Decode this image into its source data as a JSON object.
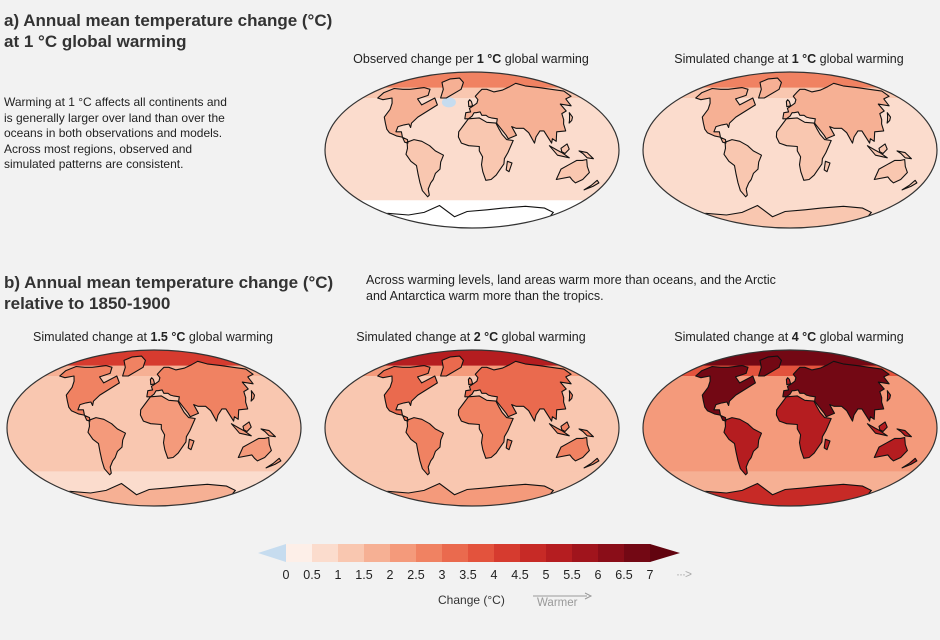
{
  "section_a": {
    "title_line1": "a) Annual mean temperature change (°C)",
    "title_line2": "at 1 °C global warming",
    "description_lines": [
      "Warming at 1 °C affects all continents and",
      "is generally larger over land than over the",
      "oceans in both observations and models.",
      "Across most regions, observed and",
      "simulated patterns are consistent."
    ],
    "maps": [
      {
        "title_pre": "Observed change per ",
        "title_bold": "1 °C",
        "title_post": " global warming",
        "intensity": "1-observed"
      },
      {
        "title_pre": "Simulated change at ",
        "title_bold": "1 °C",
        "title_post": " global warming",
        "intensity": "1"
      }
    ]
  },
  "section_b": {
    "title_line1": "b) Annual mean temperature change (°C)",
    "title_line2": "relative to 1850-1900",
    "note_line1": "Across warming levels, land areas warm more than oceans, and the Arctic",
    "note_line2": "and Antarctica warm more than the tropics.",
    "maps": [
      {
        "title_pre": "Simulated change at ",
        "title_bold": "1.5 °C",
        "title_post": " global warming",
        "intensity": "1.5"
      },
      {
        "title_pre": "Simulated change at ",
        "title_bold": "2 °C",
        "title_post": " global warming",
        "intensity": "2"
      },
      {
        "title_pre": "Simulated change at ",
        "title_bold": "4 °C",
        "title_post": " global warming",
        "intensity": "4"
      }
    ]
  },
  "colorbar": {
    "ticks": [
      "0",
      "0.5",
      "1",
      "1.5",
      "2",
      "2.5",
      "3",
      "3.5",
      "4",
      "4.5",
      "5",
      "5.5",
      "6",
      "6.5",
      "7"
    ],
    "more_symbol": "···>",
    "label": "Change (°C)",
    "direction_label": "Warmer",
    "negative_color": "#c6dcef",
    "colors": [
      "#fdefe8",
      "#fbdccd",
      "#f9c7b0",
      "#f6b094",
      "#f49a7b",
      "#f08262",
      "#ea6a4e",
      "#e3533d",
      "#d63b2f",
      "#c72a26",
      "#b51d20",
      "#a0141c",
      "#8a0d18",
      "#730814"
    ]
  }
}
